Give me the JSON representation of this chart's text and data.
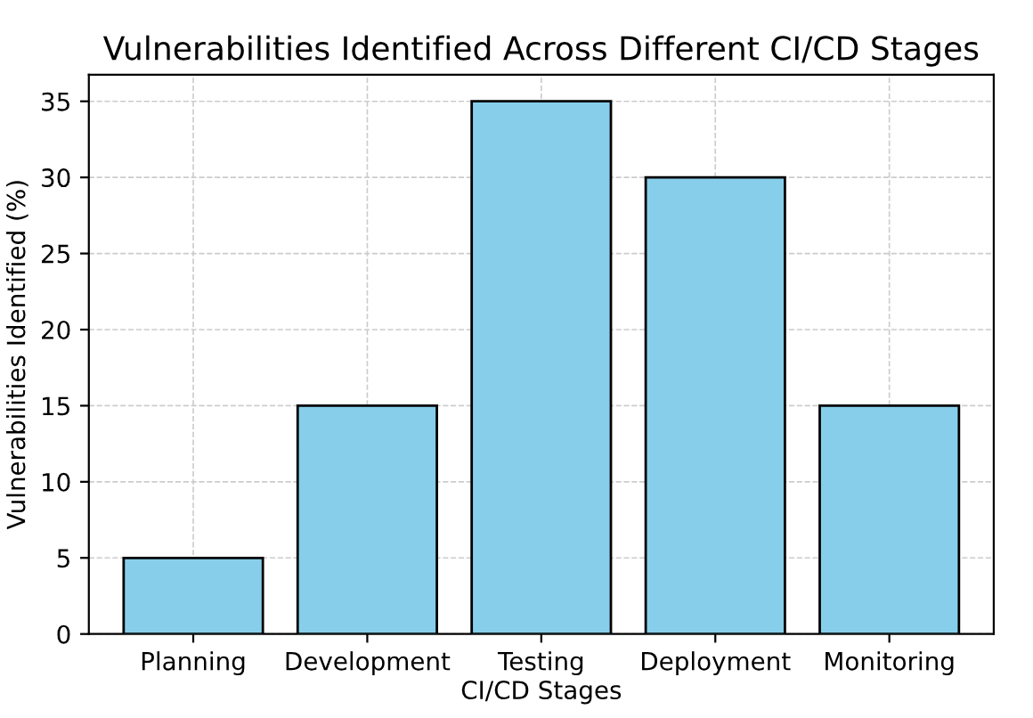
{
  "chart_data": {
    "type": "bar",
    "title": "Vulnerabilities Identified Across Different CI/CD Stages",
    "xlabel": "CI/CD Stages",
    "ylabel": "Vulnerabilities Identified (%)",
    "categories": [
      "Planning",
      "Development",
      "Testing",
      "Deployment",
      "Monitoring"
    ],
    "values": [
      5,
      15,
      35,
      30,
      15
    ],
    "color": "#87ceeb",
    "ylim": [
      0,
      36.75
    ],
    "yticks": [
      0,
      5,
      10,
      15,
      20,
      25,
      30,
      35
    ],
    "grid": true,
    "line_style": "dashed"
  }
}
